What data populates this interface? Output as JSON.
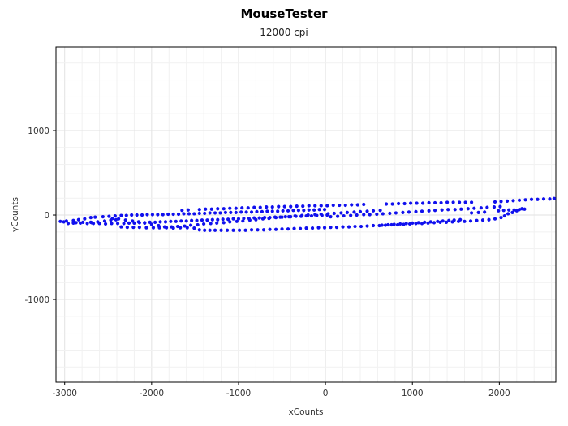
{
  "chart_data": {
    "type": "scatter",
    "title": "MouseTester",
    "subtitle": "12000 cpi",
    "xlabel": "xCounts",
    "ylabel": "yCounts",
    "xlim": [
      -3100,
      2650
    ],
    "ylim": [
      -1980,
      1990
    ],
    "xticks": [
      -3000,
      -2000,
      -1000,
      0,
      1000,
      2000
    ],
    "yticks": [
      -1000,
      0,
      1000
    ],
    "grid": true,
    "marker_color": "#1010ee",
    "series": [
      {
        "values": [
          [
            -3050,
            -75
          ],
          [
            -2980,
            -70
          ],
          [
            -2900,
            -65
          ],
          [
            -2840,
            -55
          ],
          [
            -2770,
            -45
          ],
          [
            -2700,
            -30
          ],
          [
            -2650,
            -25
          ],
          [
            -2560,
            -20
          ],
          [
            -2490,
            -15
          ],
          [
            -2420,
            -10
          ],
          [
            -2350,
            -5
          ],
          [
            -2290,
            -5
          ],
          [
            -2230,
            0
          ],
          [
            -2170,
            0
          ],
          [
            -2110,
            0
          ],
          [
            -2050,
            5
          ],
          [
            -1990,
            5
          ],
          [
            -1930,
            5
          ],
          [
            -1870,
            5
          ],
          [
            -1810,
            10
          ],
          [
            -1750,
            10
          ],
          [
            -1690,
            10
          ],
          [
            -1630,
            15
          ],
          [
            -1570,
            15
          ],
          [
            -1510,
            15
          ],
          [
            -1450,
            20
          ],
          [
            -1390,
            20
          ],
          [
            -1330,
            25
          ],
          [
            -1270,
            25
          ],
          [
            -1210,
            25
          ],
          [
            -1150,
            30
          ],
          [
            -1090,
            30
          ],
          [
            -1030,
            30
          ],
          [
            -970,
            35
          ],
          [
            -910,
            35
          ],
          [
            -850,
            35
          ],
          [
            -790,
            40
          ],
          [
            -730,
            40
          ],
          [
            -670,
            45
          ],
          [
            -610,
            45
          ],
          [
            -550,
            45
          ],
          [
            -490,
            50
          ],
          [
            -430,
            50
          ],
          [
            -370,
            55
          ],
          [
            -310,
            55
          ],
          [
            -250,
            55
          ],
          [
            -190,
            60
          ],
          [
            -130,
            60
          ],
          [
            -70,
            65
          ],
          [
            -10,
            65
          ],
          [
            -2900,
            -95
          ],
          [
            -2820,
            -95
          ],
          [
            -2740,
            -100
          ],
          [
            -2670,
            -100
          ],
          [
            -2600,
            -100
          ],
          [
            -2530,
            -105
          ],
          [
            -2460,
            -100
          ],
          [
            -2390,
            -100
          ],
          [
            -2320,
            -100
          ],
          [
            -2260,
            -95
          ],
          [
            -2200,
            -95
          ],
          [
            -2140,
            -90
          ],
          [
            -2080,
            -90
          ],
          [
            -2020,
            -85
          ],
          [
            -1960,
            -85
          ],
          [
            -1900,
            -80
          ],
          [
            -1840,
            -80
          ],
          [
            -1780,
            -75
          ],
          [
            -1720,
            -75
          ],
          [
            -1660,
            -70
          ],
          [
            -1600,
            -70
          ],
          [
            -1540,
            -65
          ],
          [
            -1480,
            -65
          ],
          [
            -1420,
            -60
          ],
          [
            -1360,
            -60
          ],
          [
            -1300,
            -55
          ],
          [
            -1240,
            -55
          ],
          [
            -1180,
            -50
          ],
          [
            -1120,
            -50
          ],
          [
            -1060,
            -45
          ],
          [
            -1000,
            -45
          ],
          [
            -940,
            -40
          ],
          [
            -880,
            -40
          ],
          [
            -820,
            -35
          ],
          [
            -760,
            -35
          ],
          [
            -700,
            -30
          ],
          [
            -640,
            -30
          ],
          [
            -580,
            -25
          ],
          [
            -520,
            -25
          ],
          [
            -460,
            -20
          ],
          [
            -400,
            -20
          ],
          [
            -340,
            -15
          ],
          [
            -280,
            -15
          ],
          [
            -220,
            -10
          ],
          [
            -160,
            -10
          ],
          [
            -100,
            -5
          ],
          [
            -40,
            -5
          ],
          [
            20,
            0
          ],
          [
            -2350,
            -140
          ],
          [
            -2280,
            -145
          ],
          [
            -2210,
            -145
          ],
          [
            -2140,
            -145
          ],
          [
            -2060,
            -150
          ],
          [
            -1980,
            -150
          ],
          [
            -1910,
            -150
          ],
          [
            -1830,
            -150
          ],
          [
            -1750,
            -155
          ],
          [
            -1670,
            -150
          ],
          [
            -1590,
            -150
          ],
          [
            -1510,
            -155
          ],
          [
            -1450,
            -175
          ],
          [
            -1390,
            -180
          ],
          [
            -1330,
            -180
          ],
          [
            -1270,
            -180
          ],
          [
            -1200,
            -180
          ],
          [
            -1130,
            -180
          ],
          [
            -1060,
            -180
          ],
          [
            -990,
            -180
          ],
          [
            -920,
            -180
          ],
          [
            -850,
            -175
          ],
          [
            -780,
            -175
          ],
          [
            -710,
            -175
          ],
          [
            -640,
            -170
          ],
          [
            -570,
            -170
          ],
          [
            -500,
            -165
          ],
          [
            -430,
            -165
          ],
          [
            -360,
            -160
          ],
          [
            -290,
            -160
          ],
          [
            -220,
            -155
          ],
          [
            -150,
            -155
          ],
          [
            -80,
            -150
          ],
          [
            -10,
            -150
          ],
          [
            60,
            -145
          ],
          [
            130,
            -145
          ],
          [
            200,
            -140
          ],
          [
            270,
            -140
          ],
          [
            340,
            -135
          ],
          [
            410,
            -135
          ],
          [
            480,
            -130
          ],
          [
            550,
            -125
          ],
          [
            620,
            -125
          ],
          [
            690,
            -120
          ],
          [
            760,
            -115
          ],
          [
            830,
            -115
          ],
          [
            900,
            -110
          ],
          [
            970,
            -105
          ],
          [
            1040,
            -100
          ],
          [
            1110,
            -100
          ],
          [
            1180,
            -95
          ],
          [
            1250,
            -90
          ],
          [
            1320,
            -85
          ],
          [
            1390,
            -85
          ],
          [
            1460,
            -80
          ],
          [
            1530,
            -75
          ],
          [
            1600,
            -75
          ],
          [
            1670,
            -70
          ],
          [
            1740,
            -65
          ],
          [
            1810,
            -60
          ],
          [
            1880,
            -55
          ],
          [
            -1650,
            55
          ],
          [
            -1580,
            60
          ],
          [
            -1450,
            65
          ],
          [
            -1380,
            70
          ],
          [
            -1310,
            70
          ],
          [
            -1240,
            75
          ],
          [
            -1170,
            75
          ],
          [
            -1100,
            80
          ],
          [
            -1030,
            80
          ],
          [
            -960,
            85
          ],
          [
            -890,
            85
          ],
          [
            -820,
            90
          ],
          [
            -750,
            90
          ],
          [
            -680,
            95
          ],
          [
            -610,
            95
          ],
          [
            -540,
            100
          ],
          [
            -470,
            100
          ],
          [
            -400,
            100
          ],
          [
            -330,
            105
          ],
          [
            -260,
            105
          ],
          [
            -190,
            110
          ],
          [
            -120,
            110
          ],
          [
            -50,
            110
          ],
          [
            20,
            110
          ],
          [
            90,
            115
          ],
          [
            160,
            115
          ],
          [
            230,
            115
          ],
          [
            300,
            120
          ],
          [
            370,
            120
          ],
          [
            440,
            125
          ],
          [
            -2450,
            -40
          ],
          [
            -2380,
            -45
          ],
          [
            -2300,
            -60
          ],
          [
            -2220,
            -70
          ],
          [
            -2150,
            -80
          ],
          [
            -2080,
            -95
          ],
          [
            -2000,
            -110
          ],
          [
            -1920,
            -125
          ],
          [
            -1850,
            -140
          ],
          [
            -1770,
            -140
          ],
          [
            -1700,
            -135
          ],
          [
            -1620,
            -130
          ],
          [
            -1550,
            -120
          ],
          [
            -1470,
            -115
          ],
          [
            -1400,
            -105
          ],
          [
            -1320,
            -100
          ],
          [
            -1250,
            -95
          ],
          [
            -1170,
            -90
          ],
          [
            -1100,
            -80
          ],
          [
            -1020,
            -75
          ],
          [
            -950,
            -70
          ],
          [
            -870,
            -60
          ],
          [
            -800,
            -55
          ],
          [
            -720,
            -45
          ],
          [
            -650,
            -40
          ],
          [
            -570,
            -30
          ],
          [
            -500,
            -25
          ],
          [
            -420,
            -20
          ],
          [
            -350,
            -10
          ],
          [
            -270,
            -5
          ],
          [
            -200,
            0
          ],
          [
            -120,
            5
          ],
          [
            -50,
            10
          ],
          [
            30,
            15
          ],
          [
            100,
            20
          ],
          [
            180,
            25
          ],
          [
            250,
            30
          ],
          [
            330,
            35
          ],
          [
            400,
            40
          ],
          [
            480,
            45
          ],
          [
            550,
            50
          ],
          [
            630,
            55
          ],
          [
            60,
            -20
          ],
          [
            140,
            -15
          ],
          [
            210,
            -10
          ],
          [
            290,
            -5
          ],
          [
            360,
            0
          ],
          [
            440,
            5
          ],
          [
            510,
            5
          ],
          [
            590,
            10
          ],
          [
            660,
            15
          ],
          [
            740,
            20
          ],
          [
            810,
            25
          ],
          [
            890,
            30
          ],
          [
            960,
            35
          ],
          [
            1040,
            40
          ],
          [
            1110,
            45
          ],
          [
            1190,
            50
          ],
          [
            1260,
            55
          ],
          [
            1340,
            60
          ],
          [
            1410,
            65
          ],
          [
            1490,
            65
          ],
          [
            1560,
            70
          ],
          [
            1640,
            75
          ],
          [
            1710,
            80
          ],
          [
            1790,
            85
          ],
          [
            1860,
            90
          ],
          [
            1940,
            95
          ],
          [
            2010,
            100
          ],
          [
            700,
            130
          ],
          [
            770,
            130
          ],
          [
            840,
            135
          ],
          [
            910,
            135
          ],
          [
            980,
            140
          ],
          [
            1050,
            140
          ],
          [
            1120,
            140
          ],
          [
            1190,
            145
          ],
          [
            1260,
            145
          ],
          [
            1330,
            145
          ],
          [
            1400,
            150
          ],
          [
            1470,
            150
          ],
          [
            1540,
            150
          ],
          [
            1610,
            150
          ],
          [
            1680,
            150
          ],
          [
            1950,
            -45
          ],
          [
            2020,
            -30
          ],
          [
            2060,
            -10
          ],
          [
            2100,
            15
          ],
          [
            2150,
            30
          ],
          [
            2200,
            50
          ],
          [
            2260,
            75
          ],
          [
            1990,
            50
          ],
          [
            2050,
            55
          ],
          [
            2110,
            60
          ],
          [
            2170,
            60
          ],
          [
            2230,
            65
          ],
          [
            2290,
            70
          ],
          [
            1830,
            35
          ],
          [
            1760,
            30
          ],
          [
            1680,
            25
          ],
          [
            1950,
            155
          ],
          [
            2020,
            160
          ],
          [
            2090,
            165
          ],
          [
            2160,
            170
          ],
          [
            2230,
            175
          ],
          [
            2300,
            180
          ],
          [
            2370,
            185
          ],
          [
            2440,
            185
          ],
          [
            2510,
            190
          ],
          [
            2580,
            190
          ],
          [
            2630,
            195
          ],
          [
            1550,
            -55
          ],
          [
            1480,
            -60
          ],
          [
            1420,
            -65
          ],
          [
            1350,
            -70
          ],
          [
            1290,
            -75
          ],
          [
            1210,
            -80
          ],
          [
            1140,
            -85
          ],
          [
            1070,
            -90
          ],
          [
            1000,
            -95
          ],
          [
            930,
            -100
          ],
          [
            860,
            -105
          ],
          [
            790,
            -110
          ],
          [
            720,
            -115
          ],
          [
            650,
            -120
          ],
          [
            -2700,
            -85
          ],
          [
            -2620,
            -80
          ],
          [
            -2540,
            -70
          ],
          [
            -2470,
            -60
          ],
          [
            -2410,
            -55
          ],
          [
            -3010,
            -80
          ],
          [
            -2960,
            -100
          ],
          [
            -2870,
            -90
          ],
          [
            -2790,
            -85
          ],
          [
            -2690,
            -90
          ]
        ]
      }
    ]
  }
}
